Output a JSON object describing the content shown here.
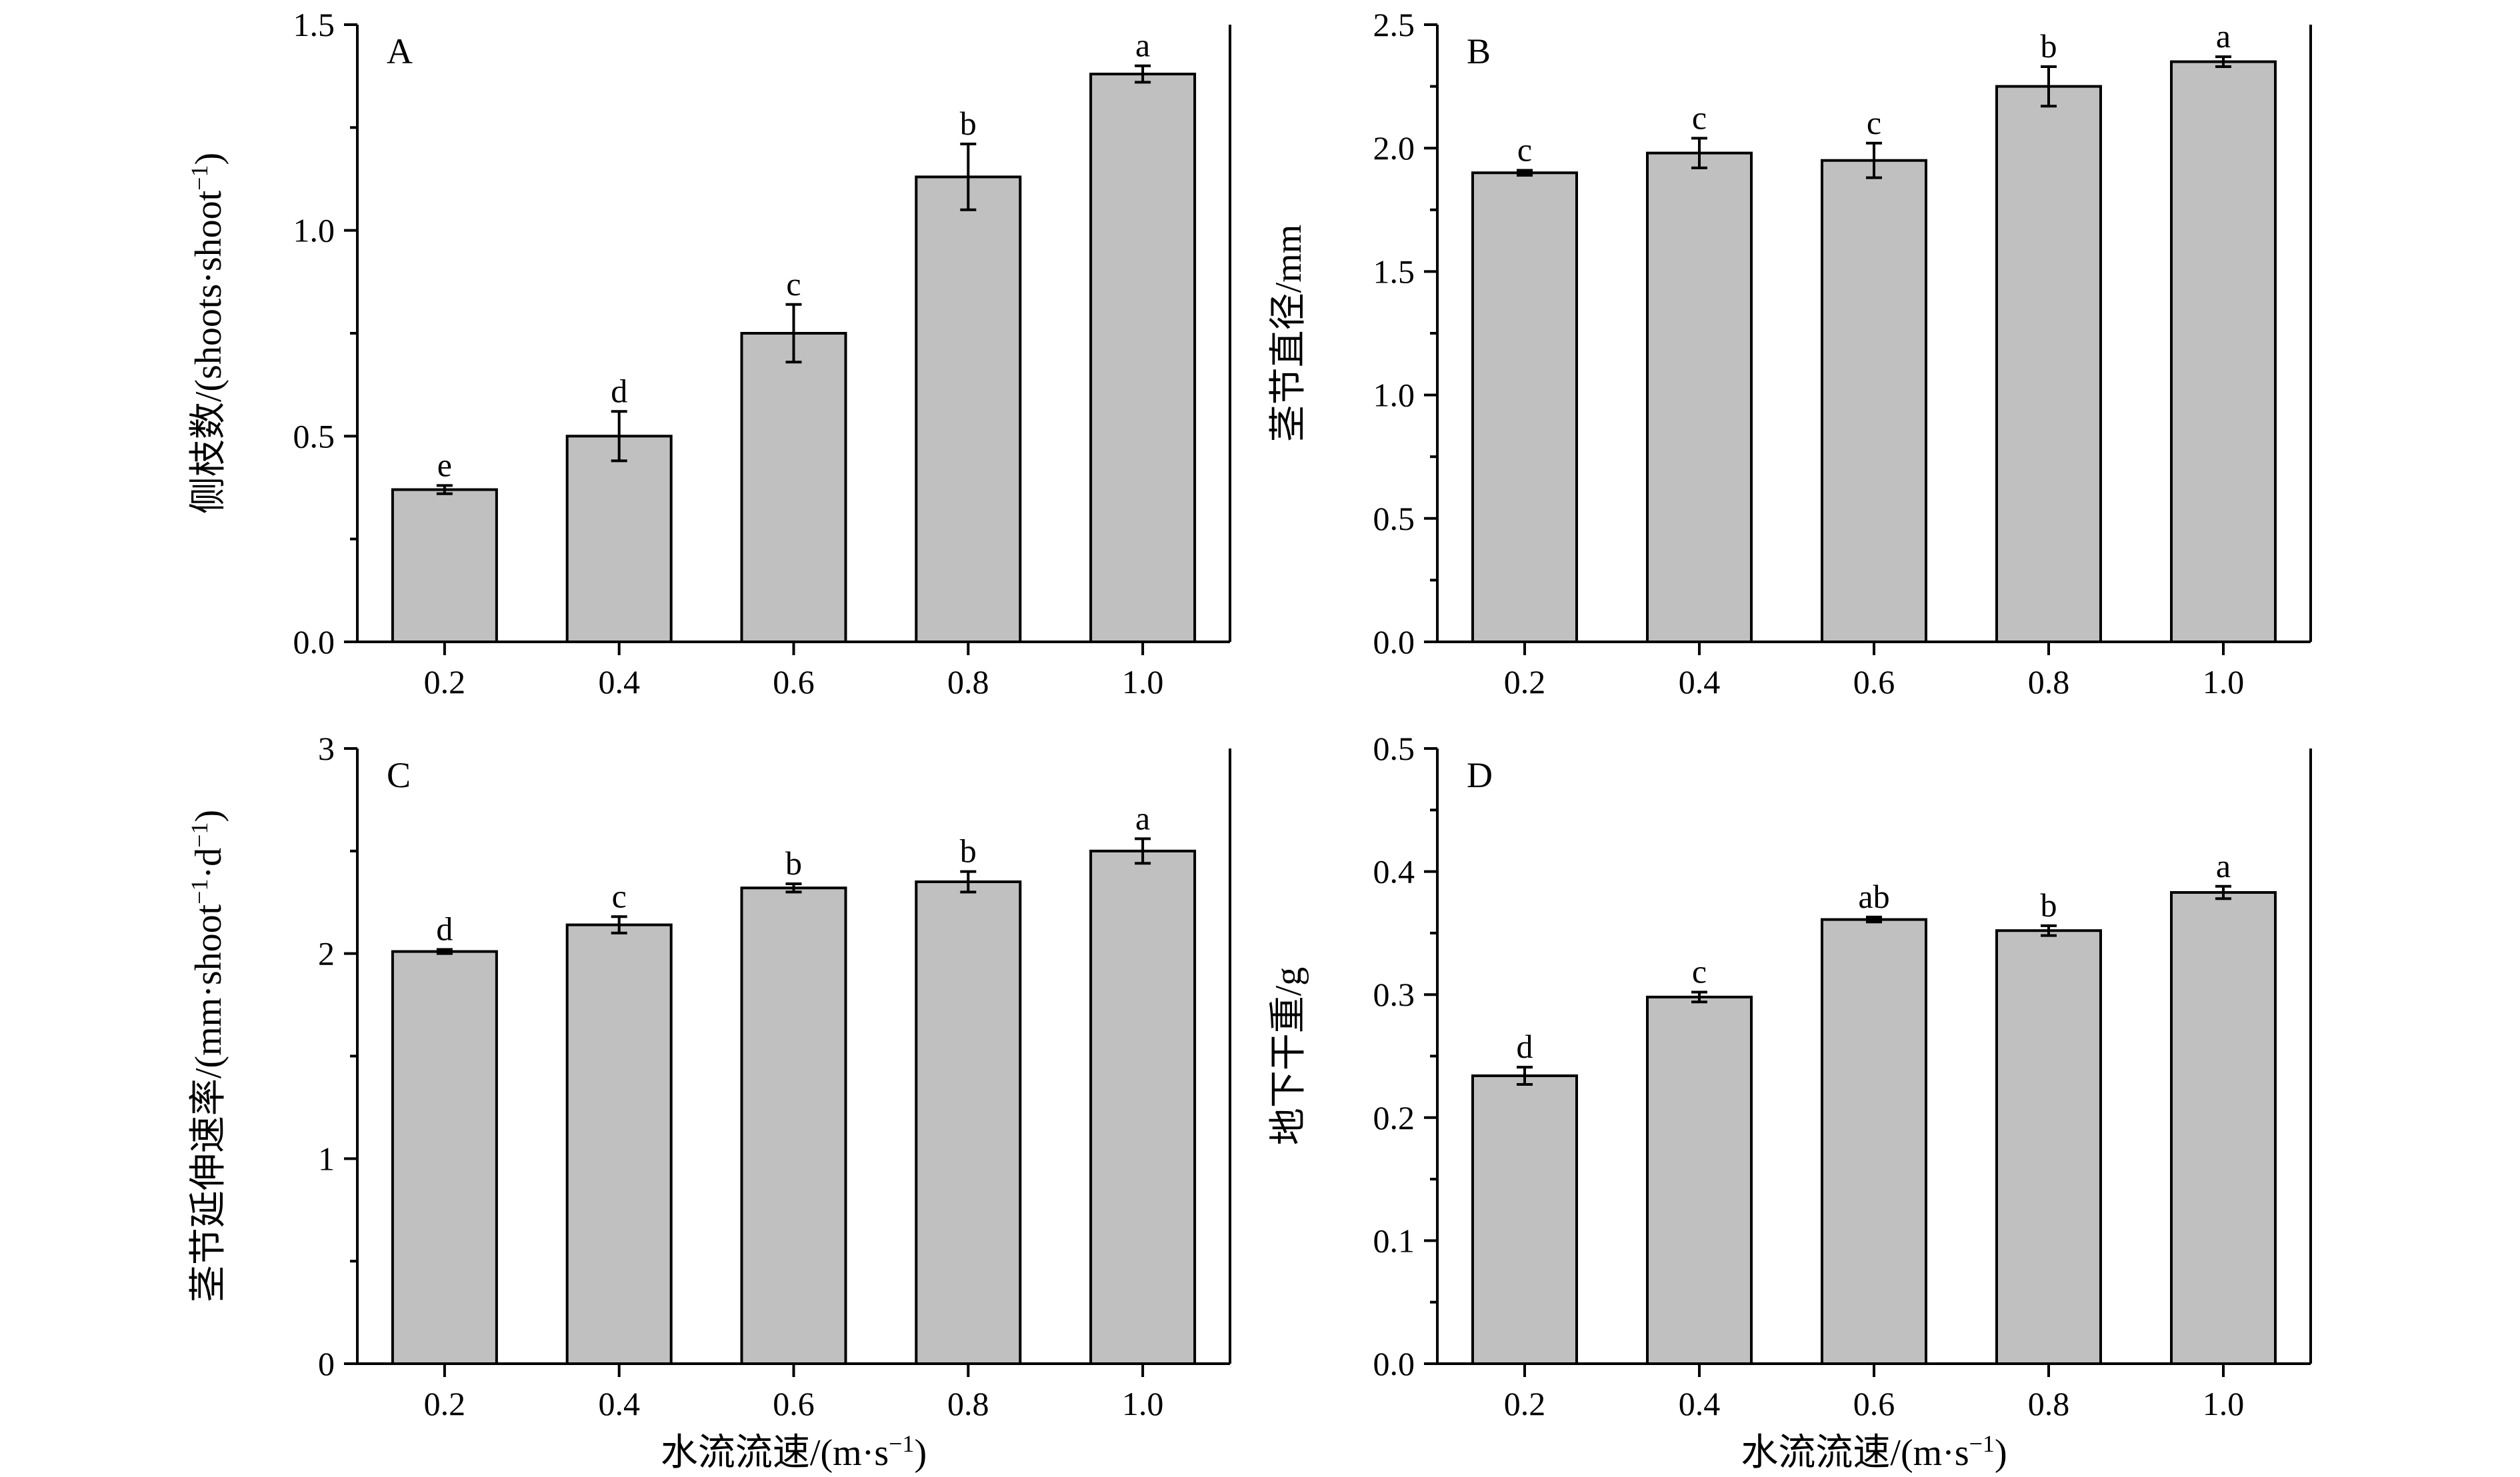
{
  "x_axis_label": "水流流速/(m·s",
  "x_axis_label_sup": "−1",
  "x_axis_label_end": ")",
  "chart_data": [
    {
      "type": "bar",
      "panel": "A",
      "categories": [
        "0.2",
        "0.4",
        "0.6",
        "0.8",
        "1.0"
      ],
      "values": [
        0.37,
        0.5,
        0.75,
        1.13,
        1.38
      ],
      "errors": [
        0.01,
        0.06,
        0.07,
        0.08,
        0.02
      ],
      "letters": [
        "e",
        "d",
        "c",
        "b",
        "a"
      ],
      "ylabel": "侧枝数/(shoots·shoot",
      "ylabel_sup": "−1",
      "ylabel_end": ")",
      "ylim": [
        0,
        1.5
      ],
      "yticks": [
        "0.0",
        "0.5",
        "1.0",
        "1.5"
      ],
      "xlabel": ""
    },
    {
      "type": "bar",
      "panel": "B",
      "categories": [
        "0.2",
        "0.4",
        "0.6",
        "0.8",
        "1.0"
      ],
      "values": [
        1.9,
        1.98,
        1.95,
        2.25,
        2.35
      ],
      "errors": [
        0.01,
        0.06,
        0.07,
        0.08,
        0.02
      ],
      "letters": [
        "c",
        "c",
        "c",
        "b",
        "a"
      ],
      "ylabel": "茎节直径/mm",
      "ylabel_sup": "",
      "ylabel_end": "",
      "ylim": [
        0,
        2.5
      ],
      "yticks": [
        "0.0",
        "0.5",
        "1.0",
        "1.5",
        "2.0",
        "2.5"
      ],
      "xlabel": ""
    },
    {
      "type": "bar",
      "panel": "C",
      "categories": [
        "0.2",
        "0.4",
        "0.6",
        "0.8",
        "1.0"
      ],
      "values": [
        2.01,
        2.14,
        2.32,
        2.35,
        2.5
      ],
      "errors": [
        0.01,
        0.04,
        0.02,
        0.05,
        0.06
      ],
      "letters": [
        "d",
        "c",
        "b",
        "b",
        "a"
      ],
      "ylabel": "茎节延伸速率/(mm·shoot",
      "ylabel_sup": "−1",
      "ylabel_mid": "·d",
      "ylabel_sup2": "−1",
      "ylabel_end": ")",
      "ylim": [
        0,
        3
      ],
      "yticks": [
        "0",
        "1",
        "2",
        "3"
      ],
      "xlabel": "水流流速/(m·s−1)"
    },
    {
      "type": "bar",
      "panel": "D",
      "categories": [
        "0.2",
        "0.4",
        "0.6",
        "0.8",
        "1.0"
      ],
      "values": [
        0.234,
        0.298,
        0.361,
        0.352,
        0.383
      ],
      "errors": [
        0.007,
        0.004,
        0.002,
        0.004,
        0.005
      ],
      "letters": [
        "d",
        "c",
        "ab",
        "b",
        "a"
      ],
      "ylabel": "地下干重/g",
      "ylabel_sup": "",
      "ylabel_end": "",
      "ylim": [
        0,
        0.5
      ],
      "yticks": [
        "0.0",
        "0.1",
        "0.2",
        "0.3",
        "0.4",
        "0.5"
      ],
      "xlabel": "水流流速/(m·s−1)"
    }
  ]
}
